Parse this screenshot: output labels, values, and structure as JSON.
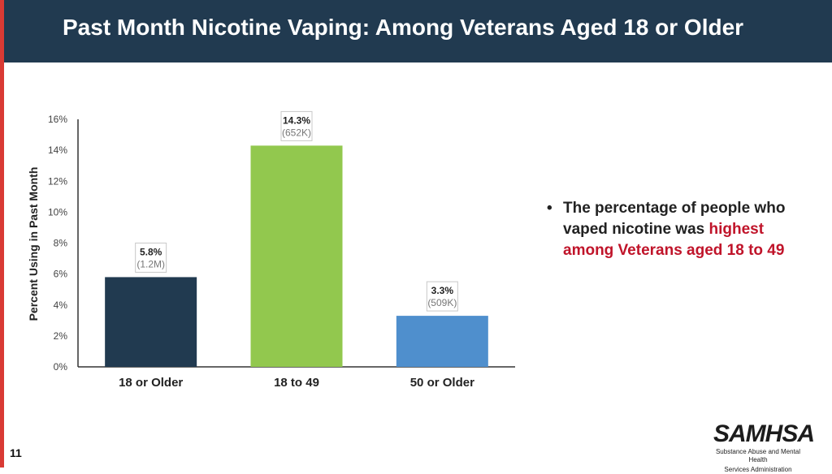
{
  "header": {
    "title": "Past Month Nicotine Vaping: Among Veterans Aged 18 or Older"
  },
  "colors": {
    "header_bg": "#213a50",
    "accent_red": "#d93a34",
    "highlight": "#c0142a"
  },
  "chart_data": {
    "type": "bar",
    "title": "",
    "xlabel": "",
    "ylabel": "Percent Using in Past Month",
    "ylim": [
      0,
      16
    ],
    "yticks": [
      0,
      2,
      4,
      6,
      8,
      10,
      12,
      14,
      16
    ],
    "ytick_labels": [
      "0%",
      "2%",
      "4%",
      "6%",
      "8%",
      "10%",
      "12%",
      "14%",
      "16%"
    ],
    "categories": [
      "18 or Older",
      "18 to 49",
      "50 or Older"
    ],
    "values": [
      5.8,
      14.3,
      3.3
    ],
    "value_labels": [
      "5.8%",
      "14.3%",
      "3.3%"
    ],
    "count_labels": [
      "(1.2M)",
      "(652K)",
      "(509K)"
    ],
    "bar_colors": [
      "#213a50",
      "#92c84e",
      "#4f8fcd"
    ],
    "grid": false
  },
  "bullet": {
    "marker": "•",
    "text_before": "The percentage of people who vaped nicotine was ",
    "text_highlight": "highest among Veterans aged 18 to 49"
  },
  "page_number": "11",
  "logo": {
    "word": "SAMHSA",
    "subtitle_line1": "Substance Abuse and Mental Health",
    "subtitle_line2": "Services Administration"
  }
}
